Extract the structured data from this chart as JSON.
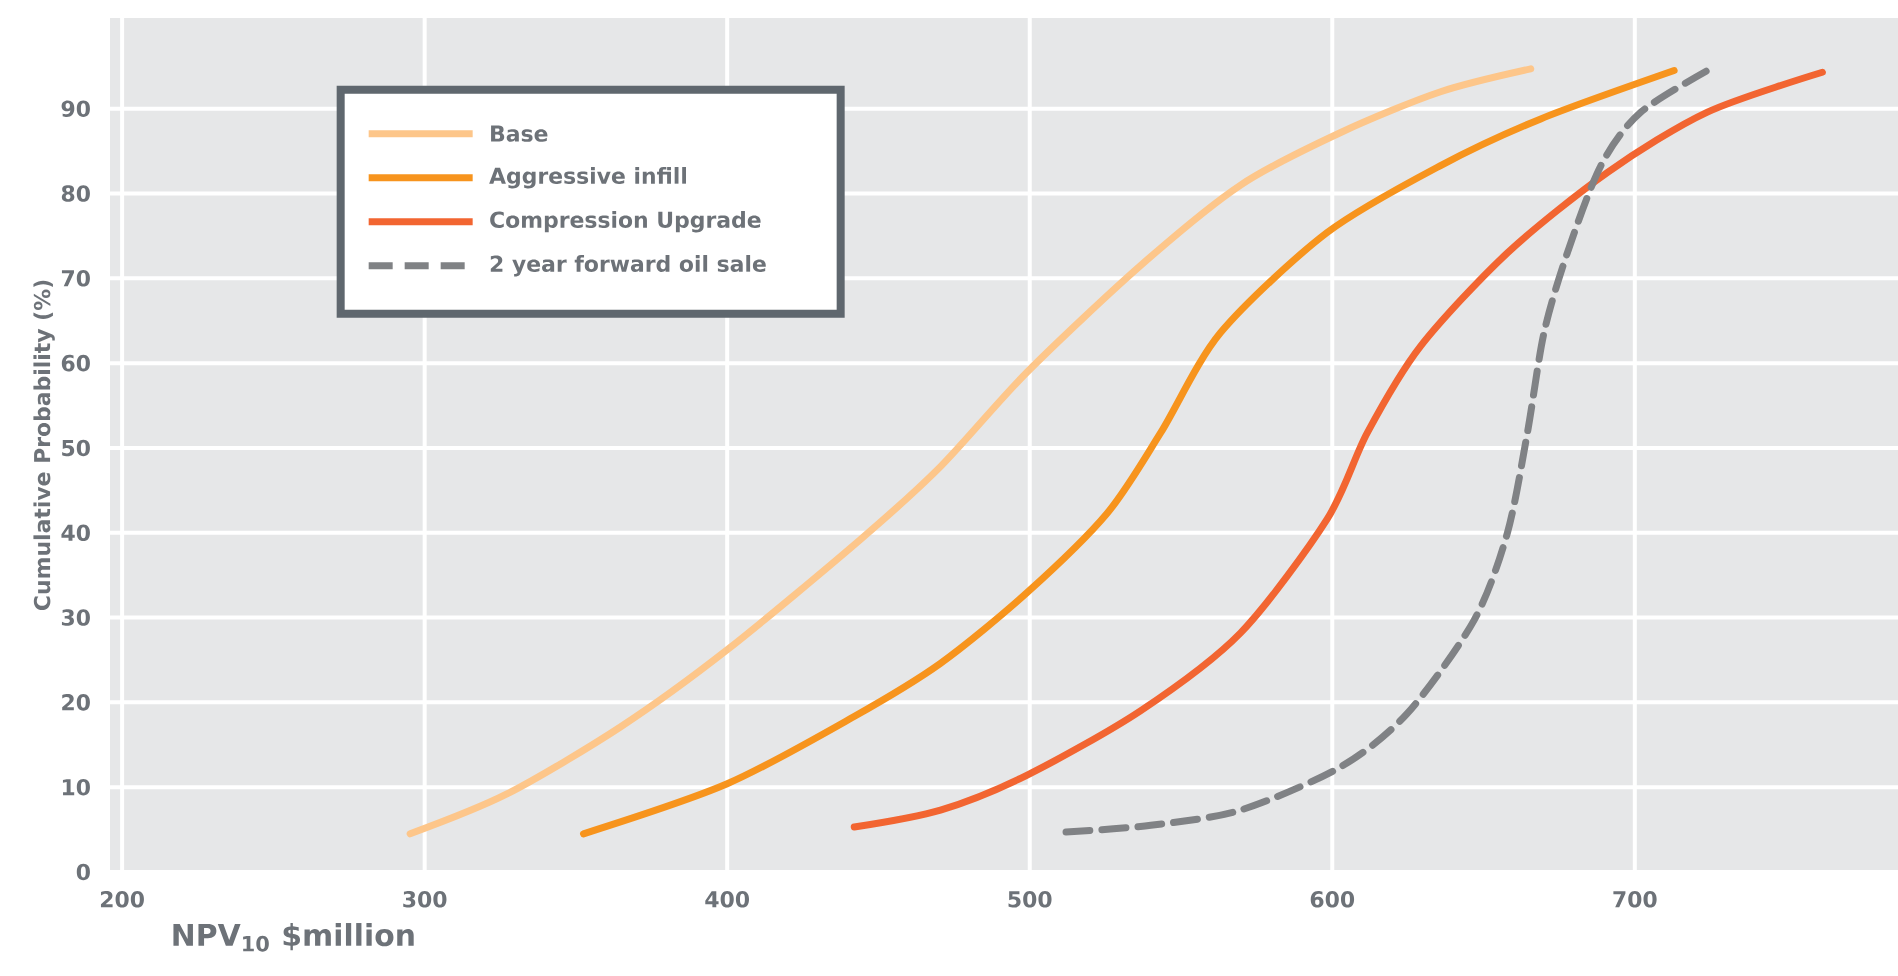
{
  "chart_data": {
    "type": "line",
    "xlabel": "NPV$_{10}$ $million",
    "ylabel": "Cumulative Probability (%)",
    "xlim": [
      196,
      787
    ],
    "ylim": [
      0,
      100.7
    ],
    "xticks": [
      200,
      300,
      400,
      500,
      600,
      700
    ],
    "yticks": [
      0,
      10,
      20,
      30,
      40,
      50,
      60,
      70,
      80,
      90
    ],
    "grid": true,
    "legend": "top left",
    "marker": "none",
    "series": [
      {
        "name": "Base",
        "color": "#fdc68a",
        "x": [
          295.2,
          327.2,
          364.7,
          400,
          444,
          470.5,
          499,
          536.6,
          569.7,
          602.8,
          635.8,
          665.6
        ],
        "values": [
          4.5,
          9.2,
          17.1,
          26.2,
          39.2,
          47.8,
          58.9,
          71.5,
          81,
          87.2,
          92,
          94.7
        ]
      },
      {
        "name": "Aggressive infill",
        "color": "#f7941d",
        "x": [
          352.5,
          400,
          441.8,
          470.5,
          499,
          525.6,
          543.3,
          563.1,
          598.3,
          635.8,
          668.9,
          713
        ],
        "values": [
          4.5,
          10.4,
          18.3,
          24.6,
          32.9,
          42.3,
          51.8,
          63.6,
          75.4,
          83.3,
          88.8,
          94.5
        ]
      },
      {
        "name": "Compression Upgrade",
        "color": "#f26531",
        "x": [
          442,
          470.5,
          499,
          536.6,
          569.7,
          598.3,
          611.6,
          629.2,
          657.9,
          691,
          724,
          762
        ],
        "values": [
          5.3,
          7.3,
          11.4,
          19,
          28.2,
          41.6,
          51.8,
          62,
          73,
          82.5,
          89.6,
          94.3
        ]
      },
      {
        "name": "2 year forward oil sale",
        "color": "#808285",
        "line_style": "dashed",
        "x": [
          512,
          540,
          569.7,
          602.8,
          624.8,
          646.9,
          657.9,
          664.5,
          670,
          677.7,
          688.8,
          702,
          726.5
        ],
        "values": [
          4.7,
          5.5,
          7.3,
          12.4,
          18.7,
          29.7,
          40,
          51.8,
          63.6,
          73,
          83.3,
          89.6,
          95
        ]
      }
    ]
  }
}
